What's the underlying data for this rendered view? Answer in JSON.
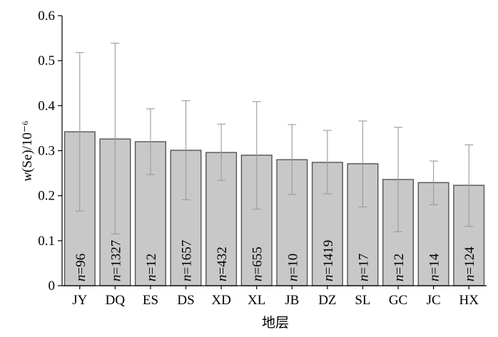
{
  "chart_data": {
    "type": "bar",
    "categories": [
      "JY",
      "DQ",
      "ES",
      "DS",
      "XD",
      "XL",
      "JB",
      "DZ",
      "SL",
      "GC",
      "JC",
      "HX"
    ],
    "series": [
      {
        "values": [
          0.342,
          0.326,
          0.32,
          0.301,
          0.296,
          0.29,
          0.28,
          0.274,
          0.271,
          0.236,
          0.229,
          0.223
        ],
        "error_low": [
          0.166,
          0.115,
          0.247,
          0.191,
          0.234,
          0.17,
          0.203,
          0.204,
          0.175,
          0.12,
          0.18,
          0.132
        ],
        "error_high": [
          0.518,
          0.539,
          0.393,
          0.411,
          0.359,
          0.409,
          0.358,
          0.345,
          0.366,
          0.352,
          0.277,
          0.313
        ]
      }
    ],
    "bar_labels": [
      "n=96",
      "n=1327",
      "n=12",
      "n=1657",
      "n=432",
      "n=655",
      "n=10",
      "n=1419",
      "n=17",
      "n=12",
      "n=14",
      "n=124"
    ],
    "ylim": [
      0,
      0.6
    ],
    "yticks": [
      0,
      0.1,
      0.2,
      0.3,
      0.4,
      0.5,
      0.6
    ],
    "ytick_labels": [
      "0",
      "0.1",
      "0.2",
      "0.3",
      "0.4",
      "0.5",
      "0.6"
    ],
    "xlabel": "地层",
    "ylabel": "w(Se)/10⁻⁶",
    "grid": false,
    "colors": {
      "bar_fill": "#c8c8c8",
      "bar_edge": "#555555",
      "error_bar": "#9a9a9a"
    }
  }
}
